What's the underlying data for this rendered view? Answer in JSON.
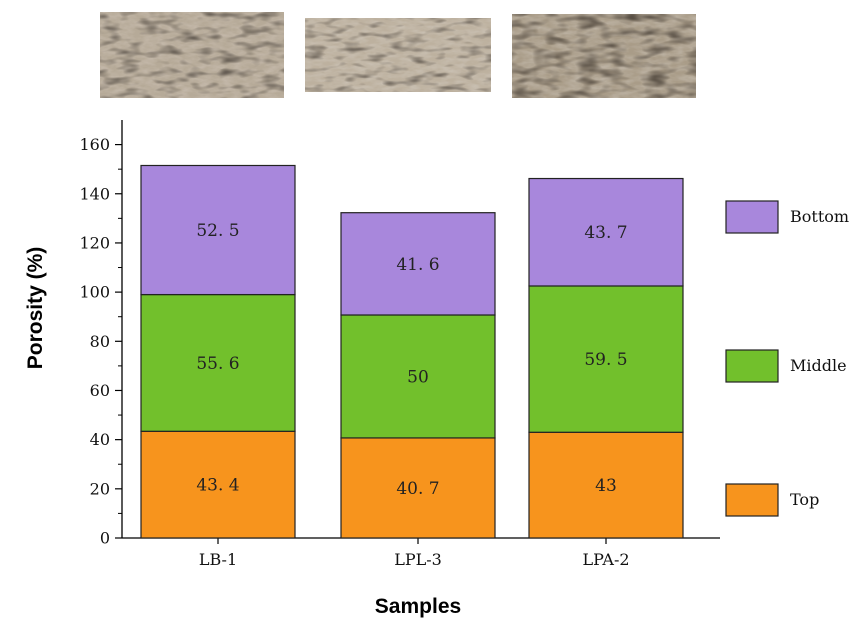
{
  "chart_data": {
    "type": "bar",
    "stacked": true,
    "categories": [
      "LB-1",
      "LPL-3",
      "LPA-2"
    ],
    "series": [
      {
        "name": "Top",
        "values": [
          43.4,
          40.7,
          43
        ],
        "labels": [
          "43. 4",
          "40. 7",
          "43"
        ],
        "color": "#f7941d"
      },
      {
        "name": "Middle",
        "values": [
          55.6,
          50,
          59.5
        ],
        "labels": [
          "55. 6",
          "50",
          "59. 5"
        ],
        "color": "#72c02c"
      },
      {
        "name": "Bottom",
        "values": [
          52.5,
          41.6,
          43.7
        ],
        "labels": [
          "52. 5",
          "41. 6",
          "43. 7"
        ],
        "color": "#a887dc"
      }
    ],
    "xlabel": "Samples",
    "ylabel": "Porosity (%)",
    "ylim": [
      0,
      170
    ],
    "yticks": [
      0,
      20,
      40,
      60,
      80,
      100,
      120,
      140,
      160
    ],
    "legend_position": "right",
    "legend_order": [
      "Bottom",
      "Middle",
      "Top"
    ],
    "grid": false
  },
  "photos": [
    {
      "name": "sample-photo-lb-1",
      "icon": "porous-sample-photo"
    },
    {
      "name": "sample-photo-lpl-3",
      "icon": "porous-sample-photo"
    },
    {
      "name": "sample-photo-lpa-2",
      "icon": "porous-sample-photo"
    }
  ]
}
